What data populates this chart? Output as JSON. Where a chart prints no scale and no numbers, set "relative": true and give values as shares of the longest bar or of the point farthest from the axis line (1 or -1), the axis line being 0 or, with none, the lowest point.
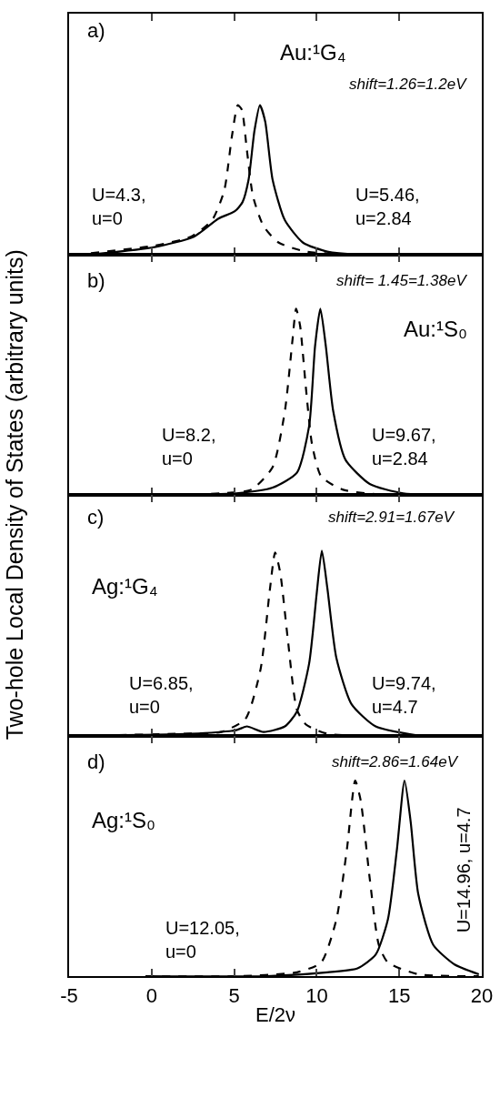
{
  "chart_data": [
    {
      "type": "line",
      "relative": true,
      "xlim": [
        -5,
        20
      ],
      "xticks": [
        -5,
        0,
        5,
        10,
        15,
        20
      ],
      "tick_labels": false,
      "ylabel": "Two-hole Local Density of States (arbitrary units)",
      "annotations": [
        "a)",
        "Au:¹G₄",
        "shift=1.26=1.2eV",
        "U=4.3,\nu=0",
        "U=5.46,\nu=2.84"
      ],
      "series": [
        {
          "color": "#000000",
          "line_style": "dashed",
          "x": [
            -3.68,
            0.18,
            2.38,
            3.66,
            4.4,
            4.86,
            5.22,
            5.46,
            5.77,
            6.14,
            6.78,
            7.7,
            9.35,
            12.47,
            20
          ],
          "values": [
            0.01,
            0.06,
            0.12,
            0.23,
            0.43,
            0.79,
            1.0,
            0.97,
            0.7,
            0.39,
            0.19,
            0.08,
            0.02,
            0,
            0
          ]
        },
        {
          "color": "#000000",
          "line_style": "solid",
          "x": [
            -3.68,
            0.18,
            2.56,
            4.03,
            5.04,
            5.5,
            5.87,
            6.23,
            6.56,
            6.88,
            7.33,
            8.07,
            9.17,
            10.64,
            12.47,
            20
          ],
          "values": [
            0,
            0.05,
            0.12,
            0.24,
            0.29,
            0.35,
            0.5,
            0.83,
            1.0,
            0.89,
            0.5,
            0.23,
            0.08,
            0.02,
            0,
            0
          ]
        }
      ]
    },
    {
      "type": "line",
      "relative": true,
      "xlim": [
        -5,
        20
      ],
      "xticks": [
        -5,
        0,
        5,
        10,
        15,
        20
      ],
      "tick_labels": false,
      "annotations": [
        "b)",
        "shift= 1.45=1.38eV",
        "Au:¹S₀",
        "U=8.2,\nu=0",
        "U=9.67,\nu=2.84"
      ],
      "series": [
        {
          "color": "#000000",
          "line_style": "dashed",
          "x": [
            -0.37,
            4.2,
            6.05,
            7.33,
            8.07,
            8.53,
            8.75,
            8.99,
            9.35,
            9.72,
            10.27,
            11.56,
            14.31,
            20
          ],
          "values": [
            0,
            0.01,
            0.03,
            0.15,
            0.45,
            0.83,
            1.0,
            0.91,
            0.57,
            0.27,
            0.1,
            0.03,
            0,
            0
          ]
        },
        {
          "color": "#000000",
          "line_style": "solid",
          "x": [
            -0.37,
            5.13,
            7.33,
            8.8,
            9.54,
            9.9,
            10.22,
            10.55,
            11.0,
            11.74,
            13.21,
            15.23,
            19.45
          ],
          "values": [
            0,
            0.01,
            0.04,
            0.12,
            0.37,
            0.8,
            1.0,
            0.8,
            0.45,
            0.19,
            0.06,
            0.01,
            0
          ]
        }
      ]
    },
    {
      "type": "line",
      "relative": true,
      "xlim": [
        -5,
        20
      ],
      "xticks": [
        -5,
        0,
        5,
        10,
        15,
        20
      ],
      "tick_labels": false,
      "annotations": [
        "c)",
        "shift=2.91=1.67eV",
        "Ag:¹G₄",
        "U=6.85,\nu=0",
        "U=9.74,\nu=4.7"
      ],
      "series": [
        {
          "color": "#000000",
          "line_style": "dashed",
          "x": [
            -4.0,
            1.46,
            4.2,
            5.68,
            6.6,
            7.15,
            7.48,
            7.79,
            8.25,
            8.8,
            9.35,
            10.64,
            14.31
          ],
          "values": [
            0,
            0.01,
            0.02,
            0.09,
            0.36,
            0.78,
            0.99,
            0.88,
            0.52,
            0.14,
            0.06,
            0.01,
            0
          ]
        },
        {
          "color": "#000000",
          "line_style": "solid",
          "x": [
            -4.0,
            2.38,
            5.13,
            5.77,
            6.78,
            8.07,
            8.8,
            9.54,
            10.0,
            10.31,
            10.64,
            11.19,
            12.11,
            13.57,
            16.15
          ],
          "values": [
            0,
            0.01,
            0.03,
            0.05,
            0.02,
            0.05,
            0.13,
            0.39,
            0.77,
            1.0,
            0.8,
            0.42,
            0.17,
            0.05,
            0
          ]
        }
      ]
    },
    {
      "type": "line",
      "relative": true,
      "xlim": [
        -5,
        20
      ],
      "xticks": [
        -5,
        0,
        5,
        10,
        15,
        20
      ],
      "tick_labels": "x",
      "xlabel": "E/2ν",
      "annotations": [
        "d)",
        "shift=2.86=1.64eV",
        "Ag:¹S₀",
        "U=12.05,\nu=0",
        "U=14.96, u=4.7"
      ],
      "series": [
        {
          "color": "#000000",
          "line_style": "dashed",
          "x": [
            -0.37,
            5.13,
            8.8,
            10.27,
            11.19,
            11.83,
            12.33,
            12.66,
            13.21,
            13.76,
            14.31,
            16.15,
            19.82
          ],
          "values": [
            0,
            0,
            0.02,
            0.07,
            0.29,
            0.65,
            1.0,
            0.9,
            0.5,
            0.16,
            0.07,
            0.01,
            0
          ]
        },
        {
          "color": "#000000",
          "line_style": "solid",
          "x": [
            -0.37,
            6.97,
            10.64,
            12.47,
            13.57,
            14.31,
            14.86,
            15.32,
            15.69,
            16.15,
            17.06,
            18.35,
            19.82
          ],
          "values": [
            0,
            0,
            0.02,
            0.04,
            0.11,
            0.29,
            0.65,
            1.0,
            0.79,
            0.42,
            0.16,
            0.06,
            0.01
          ]
        }
      ]
    }
  ]
}
